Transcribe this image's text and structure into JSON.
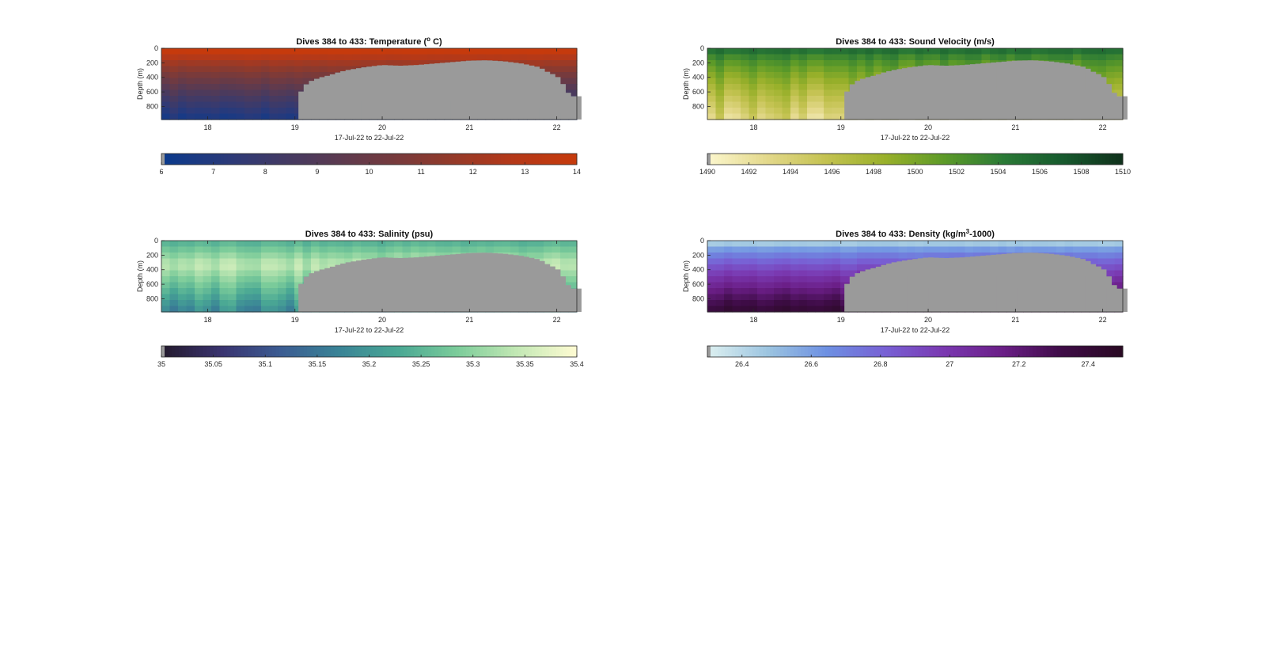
{
  "figure": {
    "background": "#ffffff",
    "mask_color": "#9a9a9a"
  },
  "chart_data": [
    {
      "type": "heatmap",
      "title": "Dives 384 to 433: Temperature (° C)",
      "title_main": "Dives 384 to 433: Temperature (",
      "title_sup": "o",
      "title_end": " C)",
      "xlabel": "17-Jul-22 to 22-Jul-22",
      "ylabel": "Depth (m)",
      "xticks": [
        "18",
        "19",
        "20",
        "21",
        "22"
      ],
      "xtick_values": [
        18,
        19,
        20,
        21,
        22
      ],
      "xlim": [
        17.47,
        22.23
      ],
      "yticks": [
        "0",
        "200",
        "400",
        "600",
        "800"
      ],
      "ytick_values": [
        0,
        200,
        400,
        600,
        800
      ],
      "ylim": [
        0,
        980
      ],
      "y_reversed": true,
      "colorbar": {
        "ticks": [
          "6",
          "7",
          "8",
          "9",
          "10",
          "11",
          "12",
          "13",
          "14"
        ],
        "tick_values": [
          6,
          7,
          8,
          9,
          10,
          11,
          12,
          13,
          14
        ],
        "range": [
          6,
          14
        ],
        "colormap": [
          "#0b3a8c",
          "#2d3a78",
          "#4a3a5e",
          "#6a3a45",
          "#8c3a2e",
          "#b2391a",
          "#c63a0c"
        ]
      },
      "surface_value": 14,
      "deep_value": 6.3,
      "column_jitter": 0.35,
      "no_data_start_date": 19.04,
      "bottom_depth_profile": {
        "x": [
          19.04,
          19.1,
          19.2,
          19.3,
          19.4,
          19.5,
          19.6,
          19.8,
          20.0,
          20.2,
          20.4,
          20.6,
          20.8,
          21.0,
          21.2,
          21.4,
          21.6,
          21.8,
          21.9,
          22.0,
          22.05,
          22.1,
          22.15,
          22.23
        ],
        "depth": [
          670,
          520,
          440,
          400,
          370,
          330,
          300,
          260,
          230,
          240,
          230,
          210,
          190,
          170,
          165,
          180,
          210,
          260,
          330,
          380,
          460,
          540,
          660,
          660
        ]
      }
    },
    {
      "type": "heatmap",
      "title": "Dives 384 to 433: Sound Velocity (m/s)",
      "title_main": "Dives 384 to 433: Sound Velocity (m/s)",
      "title_sup": "",
      "title_end": "",
      "xlabel": "17-Jul-22 to 22-Jul-22",
      "ylabel": "Depth (m)",
      "xticks": [
        "18",
        "19",
        "20",
        "21",
        "22"
      ],
      "xtick_values": [
        18,
        19,
        20,
        21,
        22
      ],
      "xlim": [
        17.47,
        22.23
      ],
      "yticks": [
        "0",
        "200",
        "400",
        "600",
        "800"
      ],
      "ytick_values": [
        0,
        200,
        400,
        600,
        800
      ],
      "ylim": [
        0,
        980
      ],
      "y_reversed": true,
      "colorbar": {
        "ticks": [
          "1490",
          "1492",
          "1494",
          "1496",
          "1498",
          "1500",
          "1502",
          "1504",
          "1506",
          "1508",
          "1510"
        ],
        "tick_values": [
          1490,
          1492,
          1494,
          1496,
          1498,
          1500,
          1502,
          1504,
          1506,
          1508,
          1510
        ],
        "range": [
          1490,
          1510
        ],
        "colormap": [
          "#fbf6cc",
          "#e3d88a",
          "#c3c250",
          "#98b02a",
          "#5c9a28",
          "#2a7a36",
          "#175a2e",
          "#10321c"
        ]
      },
      "surface_value": 1505,
      "deep_value": 1493,
      "column_jitter": 2.2,
      "no_data_start_date": 19.04,
      "bottom_depth_profile": {
        "x": [
          19.04,
          19.1,
          19.2,
          19.3,
          19.4,
          19.5,
          19.6,
          19.8,
          20.0,
          20.2,
          20.4,
          20.6,
          20.8,
          21.0,
          21.2,
          21.4,
          21.6,
          21.8,
          21.9,
          22.0,
          22.05,
          22.1,
          22.15,
          22.23
        ],
        "depth": [
          670,
          520,
          440,
          400,
          370,
          330,
          300,
          260,
          230,
          240,
          230,
          210,
          190,
          170,
          165,
          180,
          210,
          260,
          330,
          380,
          460,
          540,
          660,
          660
        ]
      }
    },
    {
      "type": "heatmap",
      "title": "Dives 384 to 433: Salinity (psu)",
      "title_main": "Dives 384 to 433: Salinity (psu)",
      "title_sup": "",
      "title_end": "",
      "xlabel": "17-Jul-22 to 22-Jul-22",
      "ylabel": "Depth (m)",
      "xticks": [
        "18",
        "19",
        "20",
        "21",
        "22"
      ],
      "xtick_values": [
        18,
        19,
        20,
        21,
        22
      ],
      "xlim": [
        17.47,
        22.23
      ],
      "yticks": [
        "0",
        "200",
        "400",
        "600",
        "800"
      ],
      "ytick_values": [
        0,
        200,
        400,
        600,
        800
      ],
      "ylim": [
        0,
        980
      ],
      "y_reversed": true,
      "colorbar": {
        "ticks": [
          "35",
          "35.05",
          "35.1",
          "35.15",
          "35.2",
          "35.25",
          "35.3",
          "35.35",
          "35.4"
        ],
        "tick_values": [
          35,
          35.05,
          35.1,
          35.15,
          35.2,
          35.25,
          35.3,
          35.35,
          35.4
        ],
        "range": [
          35,
          35.4
        ],
        "colormap": [
          "#241a2e",
          "#3a3470",
          "#3b5c92",
          "#3a8496",
          "#4aa894",
          "#7ccc9a",
          "#c2e8b4",
          "#fdfbd2"
        ]
      },
      "surface_value": 35.25,
      "mid_value": 35.34,
      "deep_value": 35.16,
      "column_jitter": 0.04,
      "no_data_start_date": 19.04,
      "bottom_depth_profile": {
        "x": [
          19.04,
          19.1,
          19.2,
          19.3,
          19.4,
          19.5,
          19.6,
          19.8,
          20.0,
          20.2,
          20.4,
          20.6,
          20.8,
          21.0,
          21.2,
          21.4,
          21.6,
          21.8,
          21.9,
          22.0,
          22.05,
          22.1,
          22.15,
          22.23
        ],
        "depth": [
          670,
          520,
          440,
          400,
          370,
          330,
          300,
          260,
          230,
          240,
          230,
          210,
          190,
          170,
          165,
          180,
          210,
          260,
          330,
          380,
          460,
          540,
          660,
          660
        ]
      }
    },
    {
      "type": "heatmap",
      "title": "Dives 384 to 433: Density (kg/m³-1000)",
      "title_main": "Dives 384 to 433: Density (kg/m",
      "title_sup": "3",
      "title_end": "-1000)",
      "xlabel": "17-Jul-22 to 22-Jul-22",
      "ylabel": "Depth (m)",
      "xticks": [
        "18",
        "19",
        "20",
        "21",
        "22"
      ],
      "xtick_values": [
        18,
        19,
        20,
        21,
        22
      ],
      "xlim": [
        17.47,
        22.23
      ],
      "yticks": [
        "0",
        "200",
        "400",
        "600",
        "800"
      ],
      "ytick_values": [
        0,
        200,
        400,
        600,
        800
      ],
      "ylim": [
        0,
        980
      ],
      "y_reversed": true,
      "colorbar": {
        "ticks": [
          "26.4",
          "26.6",
          "26.8",
          "27",
          "27.2",
          "27.4"
        ],
        "tick_values": [
          26.4,
          26.6,
          26.8,
          27,
          27.2,
          27.4
        ],
        "range": [
          26.3,
          27.5
        ],
        "colormap": [
          "#dbeff0",
          "#9cc4e0",
          "#6d90e2",
          "#7860d4",
          "#7a38b0",
          "#6a1e86",
          "#3e0c46",
          "#2a0a24"
        ]
      },
      "surface_value": 26.45,
      "deep_value": 27.45,
      "column_jitter": 0.05,
      "no_data_start_date": 19.04,
      "bottom_depth_profile": {
        "x": [
          19.04,
          19.1,
          19.2,
          19.3,
          19.4,
          19.5,
          19.6,
          19.8,
          20.0,
          20.2,
          20.4,
          20.6,
          20.8,
          21.0,
          21.2,
          21.4,
          21.6,
          21.8,
          21.9,
          22.0,
          22.05,
          22.1,
          22.15,
          22.23
        ],
        "depth": [
          670,
          520,
          440,
          400,
          370,
          330,
          300,
          260,
          230,
          240,
          230,
          210,
          190,
          170,
          165,
          180,
          210,
          260,
          330,
          380,
          460,
          540,
          660,
          660
        ]
      }
    }
  ]
}
